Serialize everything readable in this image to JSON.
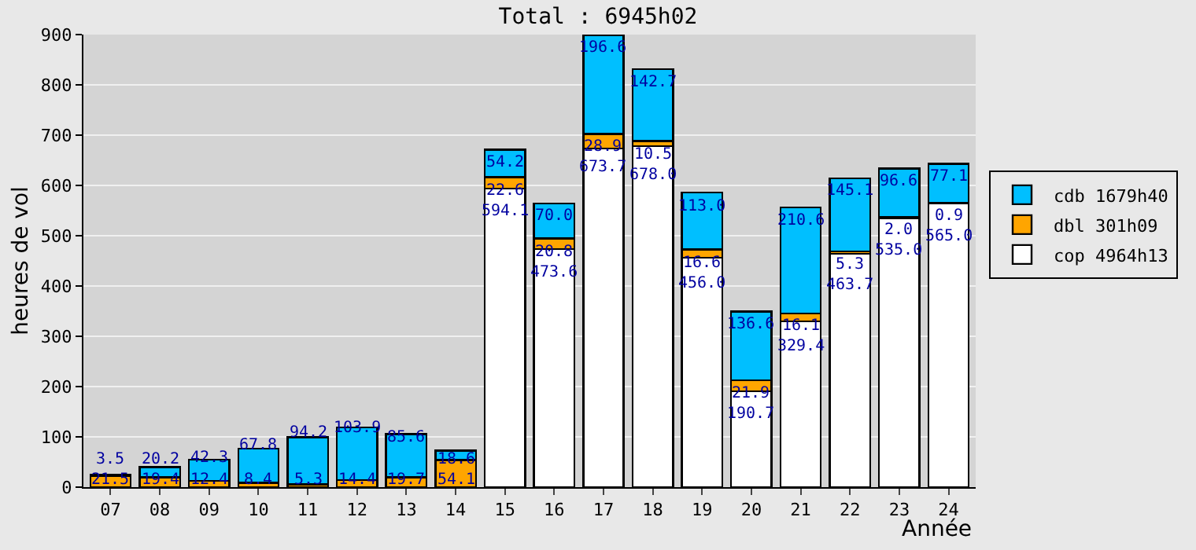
{
  "chart_data": {
    "type": "bar",
    "title": "Total : 6945h02",
    "xlabel": "Année",
    "ylabel": "heures de vol",
    "categories": [
      "07",
      "08",
      "09",
      "10",
      "11",
      "12",
      "13",
      "14",
      "15",
      "16",
      "17",
      "18",
      "19",
      "20",
      "21",
      "22",
      "23",
      "24"
    ],
    "stacked": true,
    "legend": "right",
    "grid": "y",
    "ylim": [
      0,
      900
    ],
    "yticks": [
      0,
      100,
      200,
      300,
      400,
      500,
      600,
      700,
      800,
      900
    ],
    "series": [
      {
        "name": "cop 4964h13",
        "color": "#ffffff",
        "values": [
          null,
          null,
          null,
          null,
          null,
          null,
          null,
          null,
          594.1,
          473.6,
          673.7,
          678.0,
          456.0,
          190.7,
          329.4,
          463.7,
          535.0,
          565.0
        ],
        "value_labels": [
          null,
          null,
          null,
          null,
          null,
          null,
          null,
          null,
          "594.1",
          "473.6",
          "673.7",
          "678.0",
          "456.0",
          "190.7",
          "329.4",
          "463.7",
          "535.0",
          "565.0"
        ]
      },
      {
        "name": "dbl 301h09",
        "color": "#ffa500",
        "values": [
          21.5,
          19.4,
          12.4,
          8.4,
          5.3,
          14.4,
          19.7,
          54.1,
          22.6,
          20.8,
          28.9,
          10.5,
          16.6,
          21.9,
          16.1,
          5.3,
          2.0,
          0.9
        ],
        "value_labels": [
          "21.5",
          "19.4",
          "12.4",
          "8.4",
          "5.3",
          "14.4",
          "19.7",
          "54.1",
          "22.6",
          "20.8",
          "28.9",
          "10.5",
          "16.6",
          "21.9",
          "16.1",
          "5.3",
          "2.0",
          "0.9"
        ]
      },
      {
        "name": "cdb 1679h40",
        "color": "#00bfff",
        "values": [
          3.5,
          20.2,
          42.3,
          67.8,
          94.2,
          103.9,
          85.6,
          18.6,
          54.2,
          70.0,
          196.6,
          142.7,
          113.0,
          136.6,
          210.6,
          145.1,
          96.6,
          77.1
        ],
        "value_labels": [
          "3.5",
          "20.2",
          "42.3",
          "67.8",
          "94.2",
          "103.9",
          "85.6",
          "18.6",
          "54.2",
          "70.0",
          "196.6",
          "142.7",
          "113.0",
          "136.6",
          "210.6",
          "145.1",
          "96.6",
          "77.1"
        ]
      }
    ]
  }
}
